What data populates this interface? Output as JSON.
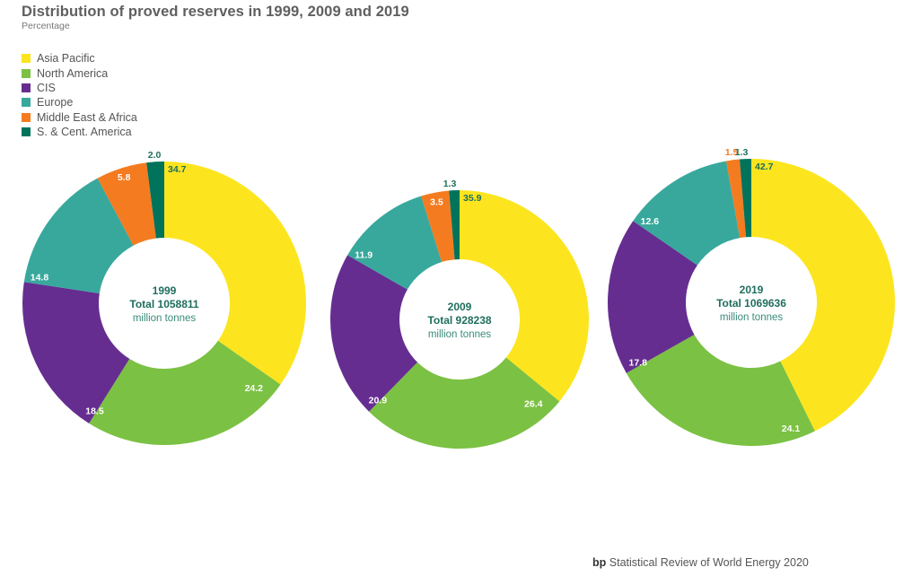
{
  "chart_data": {
    "type": "pie",
    "title": "Distribution of proved reserves in 1999, 2009 and 2019",
    "subtitle": "Percentage",
    "legend_position": "top-left",
    "legend": [
      {
        "name": "Asia Pacific",
        "color": "#fce51e"
      },
      {
        "name": "North America",
        "color": "#7bc143"
      },
      {
        "name": "CIS",
        "color": "#662d91"
      },
      {
        "name": "Europe",
        "color": "#38a89d"
      },
      {
        "name": "Middle East & Africa",
        "color": "#f47b20"
      },
      {
        "name": "S. & Cent. America",
        "color": "#00735a"
      }
    ],
    "charts": [
      {
        "year": "1999",
        "total_label": "Total 1058811",
        "unit": "million tonnes",
        "values": [
          34.7,
          24.2,
          18.5,
          14.8,
          5.8,
          2.0
        ]
      },
      {
        "year": "2009",
        "total_label": "Total 928238",
        "unit": "million tonnes",
        "values": [
          35.9,
          26.4,
          20.9,
          11.9,
          3.5,
          1.3
        ]
      },
      {
        "year": "2019",
        "total_label": "Total 1069636",
        "unit": "million tonnes",
        "values": [
          42.7,
          24.1,
          17.8,
          12.6,
          1.5,
          1.3
        ]
      }
    ]
  },
  "footer": {
    "brand": "bp",
    "text": "Statistical Review of World Energy 2020"
  },
  "colors": {
    "center_text": "#1f6e5e",
    "label_dark": "#1f6e5e",
    "label_light": "#ffffff"
  }
}
